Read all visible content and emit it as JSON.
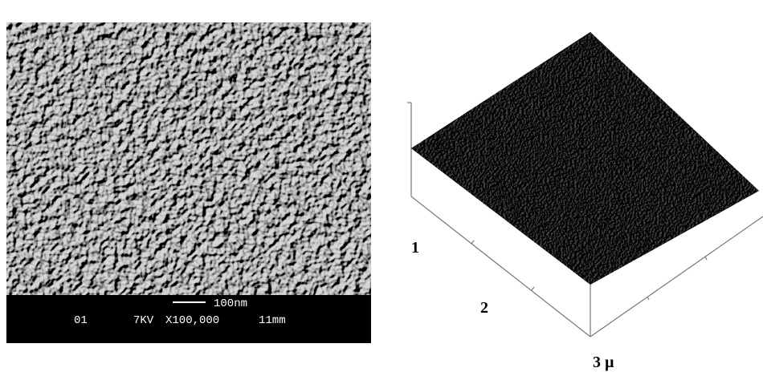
{
  "sem": {
    "scale_bar": "100nm",
    "info": [
      "01",
      "7KV",
      "X100,000",
      "11mm"
    ]
  },
  "afm": {
    "axis_labels": [
      "1",
      "2",
      "3 µ"
    ]
  }
}
